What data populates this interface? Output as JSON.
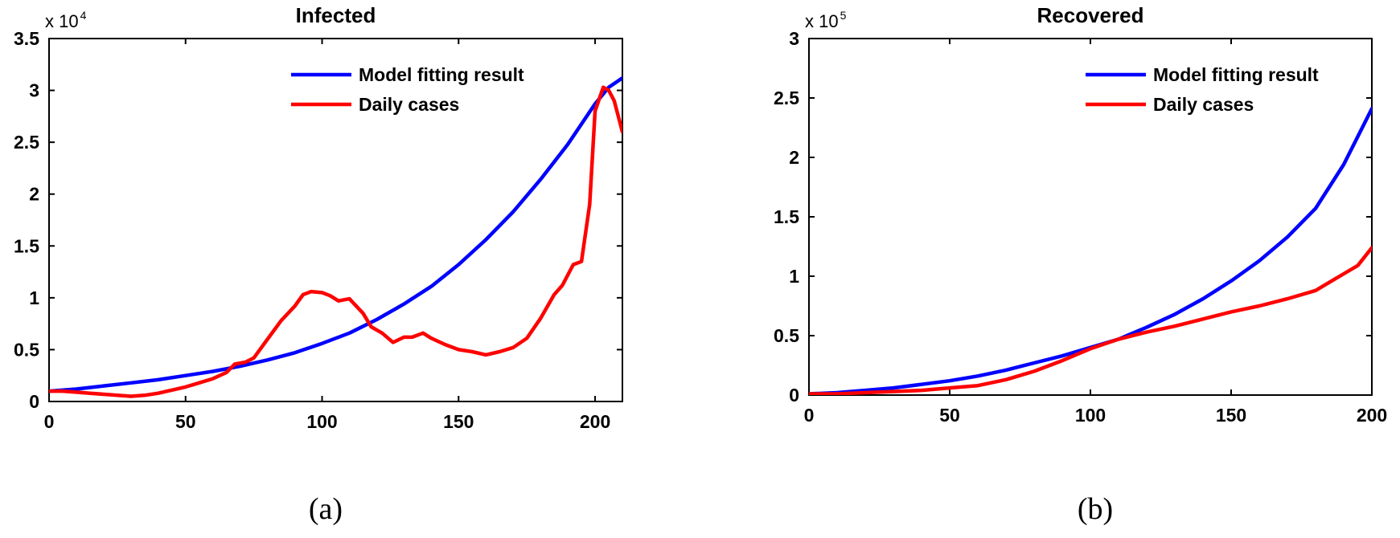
{
  "chart_data": [
    {
      "type": "line",
      "title": "Infected",
      "caption": "(a)",
      "exponent": {
        "base": "x 10",
        "power": "4"
      },
      "xlim": [
        0,
        210
      ],
      "ylim": [
        0,
        3.5
      ],
      "x_ticks": [
        "0",
        "50",
        "100",
        "150",
        "200"
      ],
      "y_ticks": [
        "0",
        "0.5",
        "1",
        "1.5",
        "2",
        "2.5",
        "3",
        "3.5"
      ],
      "legend": {
        "position": "top-right"
      },
      "series": [
        {
          "name": "Model fitting result",
          "color": "#0000ff",
          "points": [
            [
              0,
              0.1
            ],
            [
              10,
              0.12
            ],
            [
              20,
              0.15
            ],
            [
              30,
              0.18
            ],
            [
              40,
              0.21
            ],
            [
              50,
              0.25
            ],
            [
              60,
              0.29
            ],
            [
              70,
              0.34
            ],
            [
              80,
              0.4
            ],
            [
              90,
              0.47
            ],
            [
              100,
              0.56
            ],
            [
              110,
              0.66
            ],
            [
              120,
              0.79
            ],
            [
              130,
              0.94
            ],
            [
              140,
              1.11
            ],
            [
              150,
              1.32
            ],
            [
              160,
              1.56
            ],
            [
              170,
              1.83
            ],
            [
              180,
              2.14
            ],
            [
              190,
              2.48
            ],
            [
              200,
              2.87
            ],
            [
              205,
              3.03
            ],
            [
              210,
              3.12
            ]
          ]
        },
        {
          "name": "Daily cases",
          "color": "#ff0000",
          "points": [
            [
              0,
              0.1
            ],
            [
              5,
              0.1
            ],
            [
              10,
              0.09
            ],
            [
              15,
              0.08
            ],
            [
              20,
              0.07
            ],
            [
              25,
              0.06
            ],
            [
              30,
              0.05
            ],
            [
              35,
              0.06
            ],
            [
              40,
              0.08
            ],
            [
              45,
              0.11
            ],
            [
              50,
              0.14
            ],
            [
              55,
              0.18
            ],
            [
              60,
              0.22
            ],
            [
              65,
              0.28
            ],
            [
              68,
              0.36
            ],
            [
              72,
              0.38
            ],
            [
              75,
              0.42
            ],
            [
              80,
              0.6
            ],
            [
              85,
              0.78
            ],
            [
              90,
              0.92
            ],
            [
              93,
              1.03
            ],
            [
              96,
              1.06
            ],
            [
              100,
              1.05
            ],
            [
              103,
              1.02
            ],
            [
              106,
              0.97
            ],
            [
              110,
              0.99
            ],
            [
              115,
              0.85
            ],
            [
              118,
              0.72
            ],
            [
              122,
              0.66
            ],
            [
              126,
              0.57
            ],
            [
              130,
              0.62
            ],
            [
              133,
              0.62
            ],
            [
              137,
              0.66
            ],
            [
              140,
              0.61
            ],
            [
              145,
              0.55
            ],
            [
              150,
              0.5
            ],
            [
              155,
              0.48
            ],
            [
              160,
              0.45
            ],
            [
              165,
              0.48
            ],
            [
              170,
              0.52
            ],
            [
              175,
              0.61
            ],
            [
              180,
              0.8
            ],
            [
              185,
              1.03
            ],
            [
              188,
              1.12
            ],
            [
              192,
              1.32
            ],
            [
              195,
              1.35
            ],
            [
              198,
              1.9
            ],
            [
              200,
              2.8
            ],
            [
              203,
              3.03
            ],
            [
              205,
              3.0
            ],
            [
              207,
              2.9
            ],
            [
              210,
              2.6
            ]
          ]
        }
      ]
    },
    {
      "type": "line",
      "title": "Recovered",
      "caption": "(b)",
      "exponent": {
        "base": "x 10",
        "power": "5"
      },
      "xlim": [
        0,
        200
      ],
      "ylim": [
        0,
        3
      ],
      "x_ticks": [
        "0",
        "50",
        "100",
        "150",
        "200"
      ],
      "y_ticks": [
        "0",
        "0.5",
        "1",
        "1.5",
        "2",
        "2.5",
        "3"
      ],
      "legend": {
        "position": "top-right"
      },
      "series": [
        {
          "name": "Model fitting result",
          "color": "#0000ff",
          "points": [
            [
              0,
              0.01
            ],
            [
              10,
              0.02
            ],
            [
              20,
              0.04
            ],
            [
              30,
              0.06
            ],
            [
              40,
              0.09
            ],
            [
              50,
              0.12
            ],
            [
              60,
              0.16
            ],
            [
              70,
              0.21
            ],
            [
              80,
              0.27
            ],
            [
              90,
              0.33
            ],
            [
              100,
              0.4
            ],
            [
              110,
              0.47
            ],
            [
              120,
              0.57
            ],
            [
              130,
              0.68
            ],
            [
              140,
              0.81
            ],
            [
              150,
              0.96
            ],
            [
              160,
              1.13
            ],
            [
              170,
              1.33
            ],
            [
              180,
              1.57
            ],
            [
              190,
              1.94
            ],
            [
              200,
              2.41
            ]
          ]
        },
        {
          "name": "Daily cases",
          "color": "#ff0000",
          "points": [
            [
              0,
              0.01
            ],
            [
              10,
              0.01
            ],
            [
              20,
              0.02
            ],
            [
              30,
              0.03
            ],
            [
              40,
              0.04
            ],
            [
              50,
              0.06
            ],
            [
              60,
              0.08
            ],
            [
              70,
              0.13
            ],
            [
              80,
              0.2
            ],
            [
              90,
              0.29
            ],
            [
              100,
              0.39
            ],
            [
              110,
              0.47
            ],
            [
              120,
              0.53
            ],
            [
              130,
              0.58
            ],
            [
              140,
              0.64
            ],
            [
              150,
              0.7
            ],
            [
              160,
              0.75
            ],
            [
              170,
              0.81
            ],
            [
              180,
              0.88
            ],
            [
              190,
              1.02
            ],
            [
              195,
              1.09
            ],
            [
              200,
              1.24
            ]
          ]
        }
      ]
    }
  ]
}
